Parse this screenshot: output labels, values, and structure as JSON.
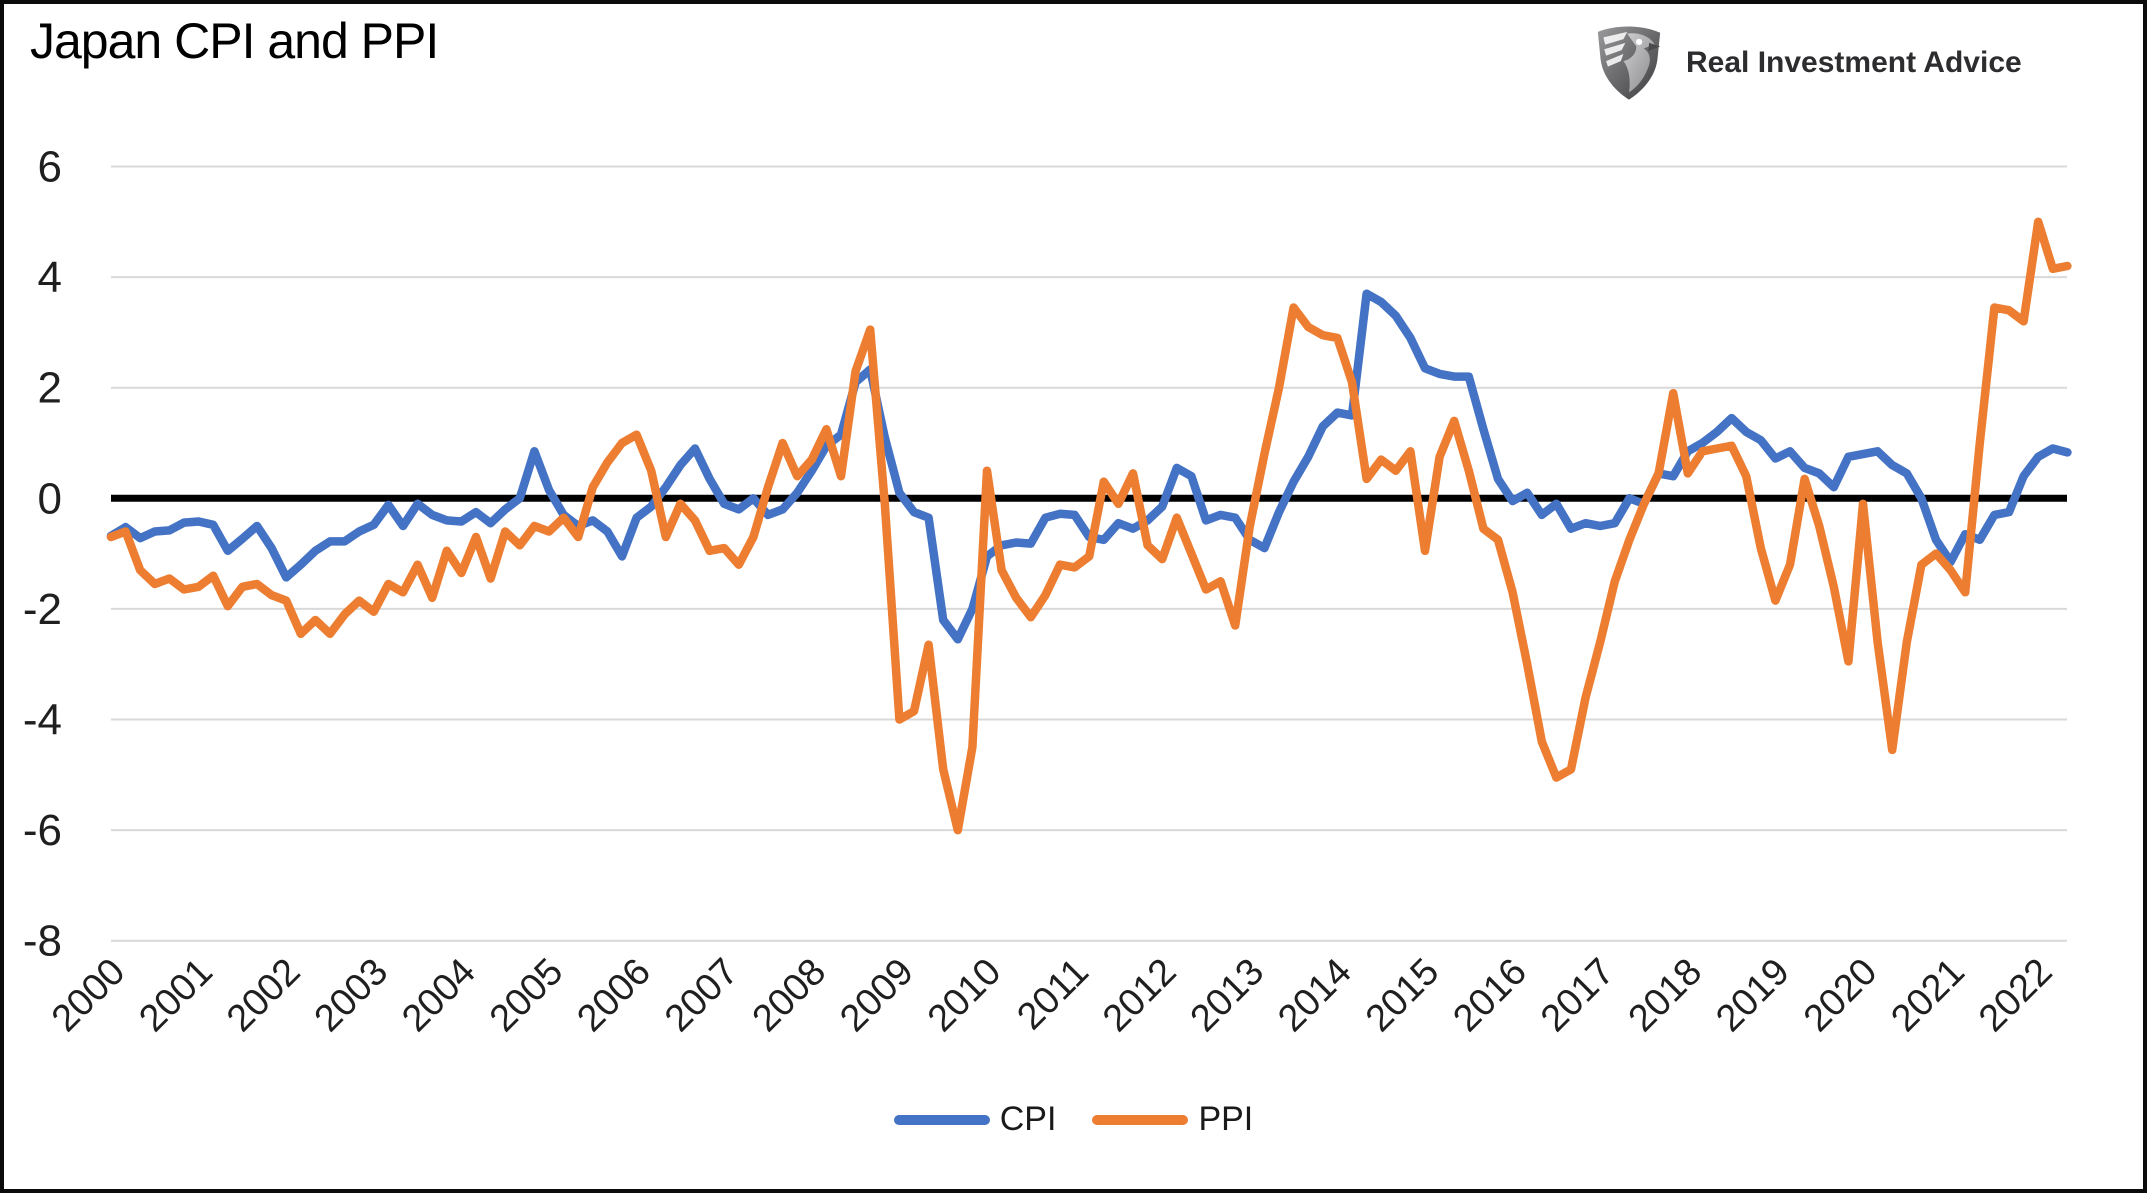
{
  "header": {
    "title": "Japan CPI and PPI"
  },
  "brand": {
    "name": "Real Investment Advice",
    "icon": "eagle-shield-icon"
  },
  "legend": [
    {
      "label": "CPI",
      "color": "#4472C4"
    },
    {
      "label": "PPI",
      "color": "#ED7D31"
    }
  ],
  "chart_data": {
    "type": "line",
    "title": "Japan CPI and PPI",
    "xlabel": "",
    "ylabel": "",
    "grid": true,
    "zero_line": true,
    "legend_position": "bottom",
    "ylim": [
      -8,
      6
    ],
    "y_ticks": [
      6,
      4,
      2,
      0,
      -2,
      -4,
      -6,
      -8
    ],
    "x_tick_labels": [
      "2000",
      "2001",
      "2002",
      "2003",
      "2004",
      "2005",
      "2006",
      "2007",
      "2008",
      "2009",
      "2010",
      "2011",
      "2012",
      "2013",
      "2014",
      "2015",
      "2016",
      "2017",
      "2018",
      "2019",
      "2020",
      "2021",
      "2022"
    ],
    "x_start": 2000,
    "x_step_years": 0.1666667,
    "series": [
      {
        "name": "CPI",
        "color": "#4472C4",
        "values": [
          -0.68,
          -0.52,
          -0.72,
          -0.6,
          -0.58,
          -0.44,
          -0.42,
          -0.48,
          -0.95,
          -0.73,
          -0.5,
          -0.9,
          -1.43,
          -1.2,
          -0.95,
          -0.78,
          -0.78,
          -0.6,
          -0.48,
          -0.12,
          -0.5,
          -0.1,
          -0.3,
          -0.4,
          -0.42,
          -0.25,
          -0.45,
          -0.2,
          0.0,
          0.85,
          0.15,
          -0.3,
          -0.5,
          -0.4,
          -0.6,
          -1.05,
          -0.35,
          -0.15,
          0.2,
          0.6,
          0.9,
          0.35,
          -0.1,
          -0.2,
          0.0,
          -0.3,
          -0.2,
          0.1,
          0.5,
          0.95,
          1.15,
          2.1,
          2.33,
          1.1,
          0.1,
          -0.25,
          -0.35,
          -2.2,
          -2.55,
          -2.0,
          -1.05,
          -0.85,
          -0.8,
          -0.82,
          -0.35,
          -0.28,
          -0.3,
          -0.7,
          -0.75,
          -0.45,
          -0.55,
          -0.4,
          -0.15,
          0.55,
          0.4,
          -0.4,
          -0.3,
          -0.35,
          -0.75,
          -0.9,
          -0.25,
          0.3,
          0.75,
          1.3,
          1.55,
          1.5,
          3.7,
          3.55,
          3.3,
          2.9,
          2.35,
          2.25,
          2.2,
          2.2,
          1.25,
          0.35,
          -0.05,
          0.1,
          -0.3,
          -0.1,
          -0.55,
          -0.45,
          -0.5,
          -0.45,
          0.0,
          -0.1,
          0.45,
          0.4,
          0.85,
          1.0,
          1.2,
          1.45,
          1.2,
          1.05,
          0.72,
          0.85,
          0.55,
          0.45,
          0.2,
          0.75,
          0.8,
          0.85,
          0.6,
          0.45,
          0.0,
          -0.75,
          -1.15,
          -0.65,
          -0.75,
          -0.3,
          -0.25,
          0.4,
          0.75,
          0.9,
          0.83
        ]
      },
      {
        "name": "PPI",
        "color": "#ED7D31",
        "values": [
          -0.7,
          -0.6,
          -1.3,
          -1.55,
          -1.45,
          -1.65,
          -1.6,
          -1.4,
          -1.95,
          -1.6,
          -1.55,
          -1.75,
          -1.85,
          -2.45,
          -2.2,
          -2.45,
          -2.1,
          -1.85,
          -2.05,
          -1.55,
          -1.7,
          -1.2,
          -1.8,
          -0.95,
          -1.35,
          -0.7,
          -1.45,
          -0.6,
          -0.85,
          -0.5,
          -0.6,
          -0.35,
          -0.7,
          0.2,
          0.65,
          1.0,
          1.15,
          0.5,
          -0.7,
          -0.1,
          -0.4,
          -0.95,
          -0.9,
          -1.2,
          -0.7,
          0.2,
          1.0,
          0.4,
          0.7,
          1.25,
          0.4,
          2.3,
          3.05,
          -0.1,
          -4.0,
          -3.85,
          -2.65,
          -4.9,
          -6.0,
          -4.5,
          0.5,
          -1.3,
          -1.8,
          -2.15,
          -1.75,
          -1.2,
          -1.25,
          -1.05,
          0.3,
          -0.1,
          0.45,
          -0.85,
          -1.1,
          -0.35,
          -1.0,
          -1.65,
          -1.5,
          -2.3,
          -0.5,
          0.8,
          2.0,
          3.45,
          3.1,
          2.95,
          2.9,
          2.1,
          0.35,
          0.7,
          0.5,
          0.85,
          -0.95,
          0.75,
          1.4,
          0.5,
          -0.55,
          -0.75,
          -1.7,
          -3.0,
          -4.4,
          -5.05,
          -4.9,
          -3.6,
          -2.6,
          -1.5,
          -0.75,
          -0.1,
          0.45,
          1.9,
          0.45,
          0.85,
          0.9,
          0.95,
          0.4,
          -0.9,
          -1.85,
          -1.2,
          0.35,
          -0.5,
          -1.6,
          -2.95,
          -0.1,
          -2.6,
          -4.55,
          -2.6,
          -1.2,
          -1.0,
          -1.3,
          -1.7,
          1.0,
          3.45,
          3.4,
          3.2,
          5.0,
          4.15,
          4.2
        ]
      }
    ]
  }
}
